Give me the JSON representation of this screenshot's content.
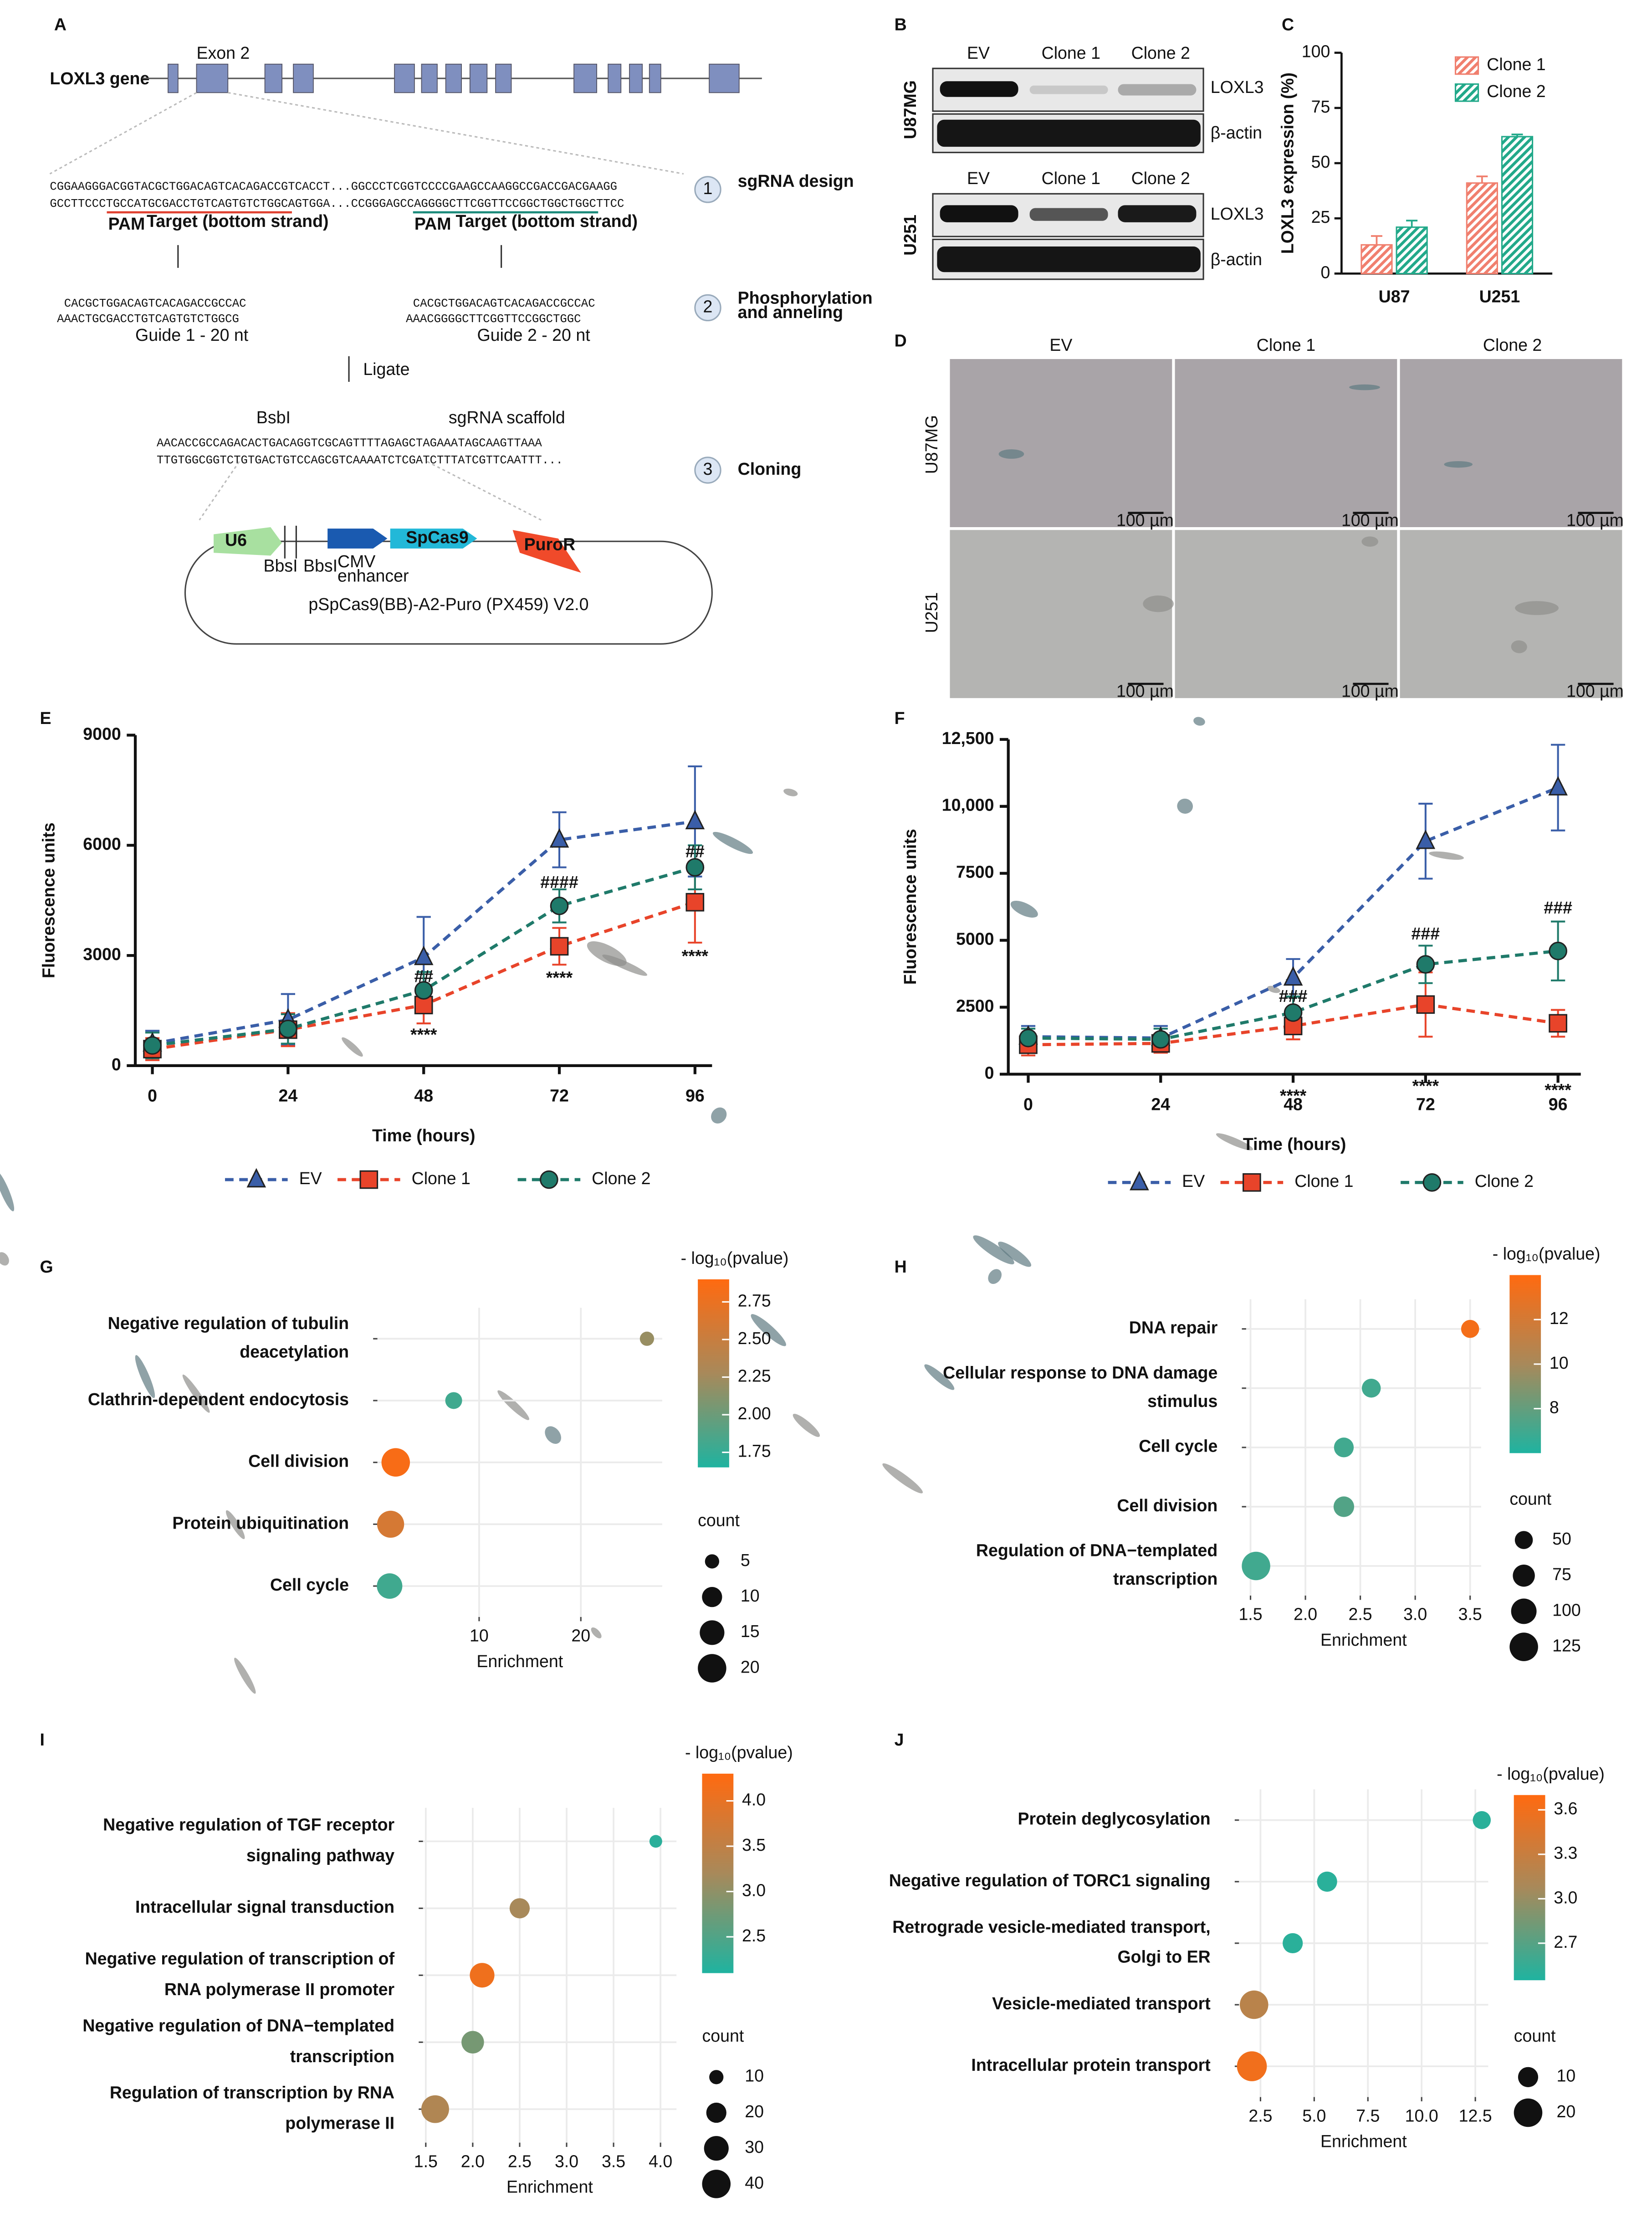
{
  "panel_labels": [
    "A",
    "B",
    "C",
    "D",
    "E",
    "F",
    "G",
    "H",
    "I",
    "J"
  ],
  "diagram": {
    "gene": "LOXL3 gene",
    "exon": "Exon 2",
    "seq_top": "CGGAAGGGACGGTACGCTGGACAGTCACAGACCGTCACCT...GGCCCTCGGTCCCCGAAGCCAAGGCCGACCGACGAAGG",
    "seq_bottom": "GCCTTCCCTGCCATGCGACCTGTCAGTGTCTGGCAGTGGA...CCGGGAGCCAGGGGCTTCGGTTCCGGCTGGCTGGCTTCC",
    "pam": "PAM",
    "target": "Target (bottom strand)",
    "steps": [
      {
        "number": "1",
        "label": [
          "sgRNA design"
        ]
      },
      {
        "number": "2",
        "label": [
          "Phosphorylation",
          "and anneling"
        ]
      },
      {
        "number": "3",
        "label": [
          "Cloning"
        ]
      }
    ],
    "guide1": [
      "CACGCTGGACAGTCACAGACCGCCAC",
      "AAACTGCGACCTGTCAGTGTCTGGCG",
      "Guide 1 - 20 nt"
    ],
    "guide2": [
      "CACGCTGGACAGTCACAGACCGCCAC",
      "AAACGGGGCTTCGGTTCCGGCTGGC",
      "Guide 2 - 20 nt"
    ],
    "ligate": "Ligate",
    "bsbi": "BsbI",
    "scaffold": "sgRNA scaffold",
    "clone_top": "AACACCGCCAGACACTGACAGGTCGCAGTTTTAGAGCTAGAAATAGCAAGTTAAA",
    "clone_bottom": "TTGTGGCGGTCTGTGACTGTCCAGCGTCAAAATCTCGATCTTTATCGTTCAATTT...",
    "plasmid": {
      "u6": "U6",
      "bbsi": "BbsI",
      "cmv": [
        "CMV",
        "enhancer"
      ],
      "cas9": "SpCas9",
      "puro": "PuroR",
      "name": "pSpCas9(BB)-A2-Puro (PX459) V2.0"
    }
  },
  "blot": {
    "columns": [
      "EV",
      "Clone 1",
      "Clone 2"
    ],
    "rows": [
      "U87MG",
      "U251"
    ],
    "bands": [
      "LOXL3",
      "β-actin"
    ]
  },
  "micrographs": {
    "columns": [
      "EV",
      "Clone 1",
      "Clone 2"
    ],
    "rows": [
      "U87MG",
      "U251"
    ],
    "scale_bar": "100 µm"
  },
  "chart_data": [
    {
      "type": "bar",
      "ylabel": "LOXL3 expression (%)",
      "categories": [
        "U87",
        "U251"
      ],
      "series": [
        {
          "name": "Clone 1",
          "color": "#f07f6e",
          "values": [
            13,
            41
          ],
          "errors": [
            4,
            3
          ]
        },
        {
          "name": "Clone 2",
          "color": "#22a98a",
          "values": [
            21,
            62
          ],
          "errors": [
            3,
            1
          ]
        }
      ],
      "ylim": [
        0,
        100
      ],
      "yticks": [
        0,
        25,
        50,
        75,
        100
      ],
      "hatch": true
    },
    {
      "type": "line",
      "xlabel": "Time (hours)",
      "ylabel": "Fluorescence units",
      "x": [
        0,
        24,
        48,
        72,
        96
      ],
      "xlim": [
        0,
        96
      ],
      "xticks": [
        0,
        24,
        48,
        72,
        96
      ],
      "ylim": [
        0,
        9000
      ],
      "yticks": [
        0,
        3000,
        6000,
        9000
      ],
      "series": [
        {
          "name": "EV",
          "color": "#3a5ea8",
          "marker": "triangle",
          "values": [
            600,
            1250,
            2950,
            6150,
            6650
          ],
          "errors": [
            350,
            700,
            1100,
            750,
            1500
          ]
        },
        {
          "name": "Clone 1",
          "color": "#e8442a",
          "marker": "square",
          "values": [
            450,
            980,
            1650,
            3250,
            4450
          ],
          "errors": [
            300,
            450,
            500,
            500,
            1100
          ]
        },
        {
          "name": "Clone 2",
          "color": "#1f7a6a",
          "marker": "circle",
          "values": [
            550,
            1000,
            2050,
            4350,
            5400
          ],
          "errors": [
            350,
            400,
            500,
            450,
            600
          ]
        }
      ],
      "annotations": [
        {
          "x": 48,
          "y": 2400,
          "text": "##"
        },
        {
          "x": 72,
          "y": 4960,
          "text": "####"
        },
        {
          "x": 96,
          "y": 5800,
          "text": "##"
        },
        {
          "x": 48,
          "y": 810,
          "text": "****"
        },
        {
          "x": 72,
          "y": 2360,
          "text": "****"
        },
        {
          "x": 96,
          "y": 2950,
          "text": "****"
        }
      ]
    },
    {
      "type": "line",
      "xlabel": "Time (hours)",
      "ylabel": "Fluorescence units",
      "x": [
        0,
        24,
        48,
        72,
        96
      ],
      "xlim": [
        0,
        96
      ],
      "xticks": [
        0,
        24,
        48,
        72,
        96
      ],
      "ylim": [
        0,
        12500
      ],
      "yticks": [
        0,
        2500,
        5000,
        7500,
        {
          "value": 10000,
          "label": "10,000"
        },
        {
          "value": 12500,
          "label": "12,500"
        }
      ],
      "series": [
        {
          "name": "EV",
          "color": "#3a5ea8",
          "marker": "triangle",
          "values": [
            1400,
            1350,
            3600,
            8700,
            10700
          ],
          "errors": [
            400,
            450,
            700,
            1400,
            1600
          ]
        },
        {
          "name": "Clone 1",
          "color": "#e8442a",
          "marker": "square",
          "values": [
            1100,
            1150,
            1800,
            2600,
            1900
          ],
          "errors": [
            400,
            350,
            500,
            1200,
            500
          ]
        },
        {
          "name": "Clone 2",
          "color": "#1f7a6a",
          "marker": "circle",
          "values": [
            1350,
            1300,
            2300,
            4100,
            4600
          ],
          "errors": [
            350,
            400,
            600,
            700,
            1100
          ]
        }
      ],
      "annotations": [
        {
          "x": 48,
          "y": 2870,
          "text": "###"
        },
        {
          "x": 72,
          "y": 5200,
          "text": "###"
        },
        {
          "x": 96,
          "y": 6170,
          "text": "###"
        },
        {
          "x": 48,
          "y": -850,
          "text": "****"
        },
        {
          "x": 72,
          "y": -480,
          "text": "****"
        },
        {
          "x": 96,
          "y": -640,
          "text": "****"
        }
      ]
    },
    {
      "type": "dot",
      "xlabel": "Enrichment",
      "color_label": "- log₁₀(pvalue)",
      "size_label": "count",
      "categories": [
        [
          "Negative regulation of tubulin",
          "deacetylation"
        ],
        [
          "Clathrin-dependent endocytosis"
        ],
        [
          "Cell division"
        ],
        [
          "Protein ubiquitination"
        ],
        [
          "Cell cycle"
        ]
      ],
      "enrichment": [
        26.5,
        7.5,
        1.8,
        1.3,
        1.2
      ],
      "neg_log10_p": [
        2.2,
        1.8,
        2.85,
        2.6,
        1.8
      ],
      "count": [
        5,
        7,
        20,
        18,
        16
      ],
      "xlim": [
        0,
        28
      ],
      "xticks": [
        10,
        20
      ],
      "clim": [
        1.65,
        2.9
      ],
      "colorticks": [
        1.75,
        {
          "value": 2,
          "label": "2.00"
        },
        2.25,
        {
          "value": 2.5,
          "label": "2.50"
        },
        2.75
      ],
      "sizeticks": [
        5,
        10,
        15,
        20
      ],
      "colormap": [
        "#1fb3a0",
        "#a8895a",
        "#ff6a10"
      ],
      "grid": true
    },
    {
      "type": "dot",
      "xlabel": "Enrichment",
      "color_label": "- log₁₀(pvalue)",
      "size_label": "count",
      "categories": [
        [
          "DNA repair"
        ],
        [
          "Cellular response to DNA damage",
          "stimulus"
        ],
        [
          "Cell cycle"
        ],
        [
          "Cell division"
        ],
        [
          "Regulation of DNA−templated",
          "transcription"
        ]
      ],
      "enrichment": [
        3.5,
        2.6,
        2.35,
        2.35,
        1.55
      ],
      "neg_log10_p": [
        13.5,
        7,
        7,
        7.5,
        7
      ],
      "count": [
        50,
        55,
        60,
        65,
        125
      ],
      "xlim": [
        1.46,
        3.6
      ],
      "xticks": [
        1.5,
        {
          "value": 2,
          "label": "2.0"
        },
        2.5,
        {
          "value": 3,
          "label": "3.0"
        },
        3.5
      ],
      "clim": [
        6,
        14
      ],
      "colorticks": [
        8,
        10,
        12
      ],
      "sizeticks": [
        50,
        75,
        100,
        125
      ],
      "colormap": [
        "#1fb3a0",
        "#a8895a",
        "#ff6a10"
      ],
      "grid": true
    },
    {
      "type": "dot",
      "xlabel": "Enrichment",
      "color_label": "- log₁₀(pvalue)",
      "size_label": "count",
      "categories": [
        [
          "Negative regulation of TGF receptor",
          "signaling pathway"
        ],
        [
          "Intracellular signal transduction"
        ],
        [
          "Negative regulation of transcription of",
          "RNA polymerase II promoter"
        ],
        [
          "Negative regulation of DNA−templated",
          "transcription"
        ],
        [
          "Regulation of transcription by RNA",
          "polymerase II"
        ]
      ],
      "enrichment": [
        3.95,
        2.5,
        2.1,
        2.0,
        1.6
      ],
      "neg_log10_p": [
        2.2,
        3.2,
        4.1,
        2.8,
        3.3
      ],
      "count": [
        8,
        20,
        30,
        25,
        38
      ],
      "xlim": [
        1.47,
        4.17
      ],
      "xticks": [
        1.5,
        {
          "value": 2,
          "label": "2.0"
        },
        2.5,
        {
          "value": 3,
          "label": "3.0"
        },
        3.5,
        {
          "value": 4,
          "label": "4.0"
        }
      ],
      "clim": [
        2.1,
        4.3
      ],
      "colorticks": [
        2.5,
        {
          "value": 3,
          "label": "3.0"
        },
        3.5,
        {
          "value": 4,
          "label": "4.0"
        }
      ],
      "sizeticks": [
        10,
        20,
        30,
        40
      ],
      "colormap": [
        "#1fb3a0",
        "#a8895a",
        "#ff6a10"
      ],
      "grid": true
    },
    {
      "type": "dot",
      "xlabel": "Enrichment",
      "color_label": "- log₁₀(pvalue)",
      "size_label": "count",
      "categories": [
        [
          "Protein deglycosylation"
        ],
        [
          "Negative regulation of TORC1 signaling"
        ],
        [
          "Retrograde vesicle-mediated transport,",
          "Golgi to ER"
        ],
        [
          "Vesicle-mediated transport"
        ],
        [
          "Intracellular protein transport"
        ]
      ],
      "enrichment": [
        12.8,
        5.6,
        4.0,
        2.2,
        2.1
      ],
      "neg_log10_p": [
        2.5,
        2.5,
        2.5,
        3.2,
        3.6
      ],
      "count": [
        8,
        10,
        10,
        20,
        22
      ],
      "xlim": [
        1.5,
        13.1
      ],
      "xticks": [
        2.5,
        {
          "value": 5,
          "label": "5.0"
        },
        7.5,
        {
          "value": 10,
          "label": "10.0"
        },
        12.5
      ],
      "clim": [
        2.45,
        3.7
      ],
      "colorticks": [
        2.7,
        {
          "value": 3,
          "label": "3.0"
        },
        3.3,
        3.6
      ],
      "sizeticks": [
        10,
        20
      ],
      "colormap": [
        "#1fb3a0",
        "#a8895a",
        "#ff6a10"
      ],
      "grid": true
    }
  ]
}
